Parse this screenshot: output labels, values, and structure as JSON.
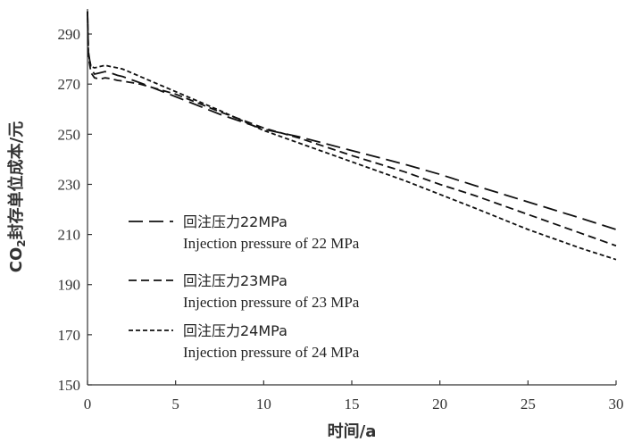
{
  "chart_data": {
    "type": "line",
    "xlabel": "时间/a",
    "ylabel_main": "CO",
    "ylabel_sub": "2",
    "ylabel_rest": "封存单位成本/元",
    "xlim": [
      0,
      30
    ],
    "ylim": [
      150,
      300
    ],
    "xticks": [
      0,
      5,
      10,
      15,
      20,
      25,
      30
    ],
    "yticks": [
      150,
      170,
      190,
      210,
      230,
      250,
      270,
      290
    ],
    "grid": false,
    "legend_position": "bottom-left",
    "series": [
      {
        "name_cn": "回注压力22MPa",
        "name_en": "Injection pressure of 22 MPa",
        "dash": "long-dash",
        "x": [
          0,
          0.05,
          0.2,
          0.4,
          0.7,
          1.0,
          1.3,
          1.7,
          2.0,
          3.0,
          5.0,
          7.5,
          10,
          12,
          15,
          18,
          20,
          22,
          25,
          28,
          30
        ],
        "y": [
          299,
          283,
          276,
          274,
          274.5,
          275,
          274.5,
          273.5,
          273,
          270.5,
          265,
          258,
          252,
          249,
          243.5,
          238,
          234,
          229.5,
          223,
          216.5,
          212
        ]
      },
      {
        "name_cn": "回注压力23MPa",
        "name_en": "Injection pressure of 23 MPa",
        "dash": "dash",
        "x": [
          0,
          0.05,
          0.2,
          0.4,
          0.7,
          1.0,
          1.3,
          1.7,
          2.0,
          3.0,
          5.0,
          7.5,
          10,
          12,
          15,
          18,
          20,
          22,
          25,
          28,
          30
        ],
        "y": [
          299,
          281,
          274.5,
          272.5,
          272,
          272.5,
          272.2,
          271.5,
          271.2,
          270,
          266,
          259,
          252.5,
          248.5,
          241.5,
          235,
          230,
          225.5,
          218,
          210.5,
          205.5
        ]
      },
      {
        "name_cn": "回注压力24MPa",
        "name_en": "Injection pressure of 24 MPa",
        "dash": "short-dash",
        "x": [
          0,
          0.05,
          0.2,
          0.4,
          0.7,
          1.0,
          1.3,
          1.7,
          2.0,
          3.0,
          5.0,
          7.5,
          10,
          12,
          15,
          18,
          20,
          22,
          25,
          28,
          30
        ],
        "y": [
          299,
          282,
          277,
          276.5,
          277,
          277.5,
          277,
          276.5,
          276,
          273,
          267,
          259.5,
          251.5,
          246.5,
          239,
          231.5,
          226,
          220.5,
          212,
          204.5,
          200
        ]
      }
    ]
  }
}
